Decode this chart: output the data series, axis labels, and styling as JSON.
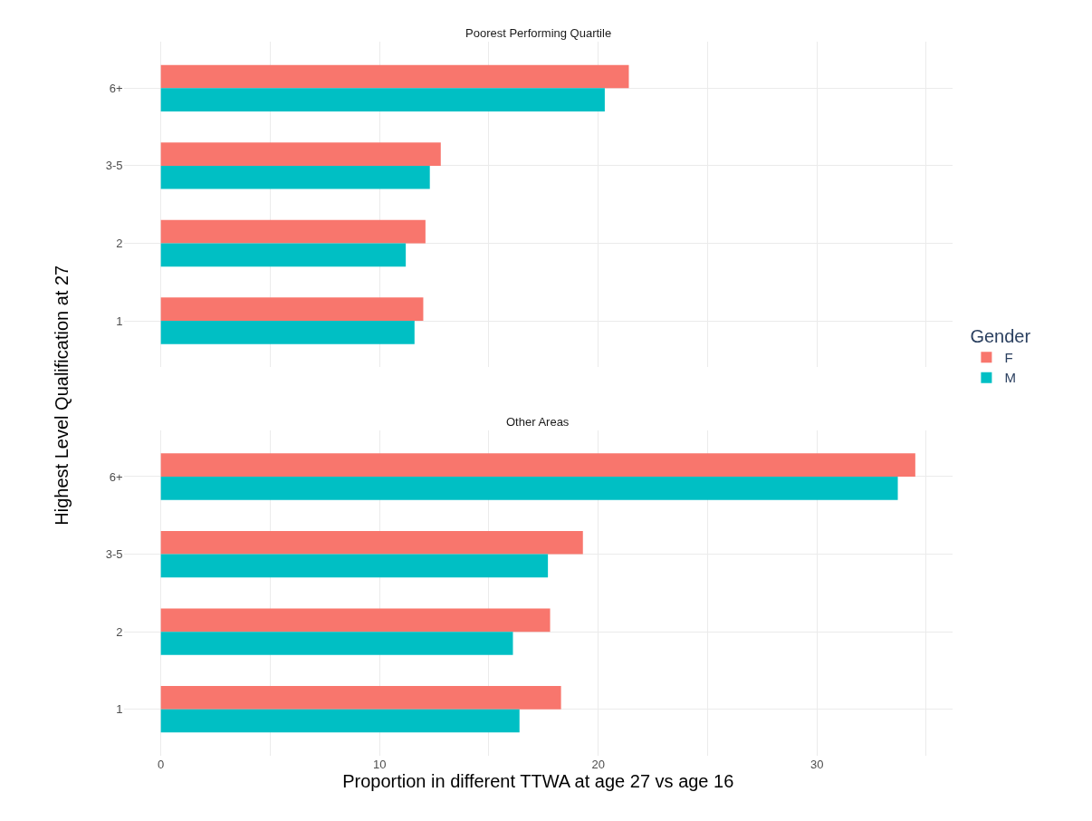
{
  "chart_data": [
    {
      "type": "bar",
      "orientation": "horizontal",
      "title": "Poorest Performing Quartile",
      "categories": [
        "6+",
        "3-5",
        "2",
        "1"
      ],
      "series": [
        {
          "name": "F",
          "color": "#f8766d",
          "values": [
            21.4,
            12.8,
            12.1,
            12.0
          ]
        },
        {
          "name": "M",
          "color": "#00bfc4",
          "values": [
            20.3,
            12.3,
            11.2,
            11.6
          ]
        }
      ],
      "xlim": [
        -1.7,
        36.2
      ],
      "xticks": [
        0,
        {
          "value": 5,
          "label": null
        },
        10,
        {
          "value": 15,
          "label": null
        },
        20,
        {
          "value": 25,
          "label": null
        },
        30,
        {
          "value": 35,
          "label": null
        }
      ],
      "grid": true,
      "tick_labels": "y",
      "legend": "right",
      "legend_title": "Gender"
    },
    {
      "type": "bar",
      "orientation": "horizontal",
      "title": "Other Areas",
      "categories": [
        "6+",
        "3-5",
        "2",
        "1"
      ],
      "series": [
        {
          "name": "F",
          "color": "#f8766d",
          "values": [
            34.5,
            19.3,
            17.8,
            18.3
          ]
        },
        {
          "name": "M",
          "color": "#00bfc4",
          "values": [
            33.7,
            17.7,
            16.1,
            16.4
          ]
        }
      ],
      "xlim": [
        -1.7,
        36.2
      ],
      "xticks": [
        0,
        {
          "value": 5,
          "label": null
        },
        10,
        {
          "value": 15,
          "label": null
        },
        20,
        {
          "value": 25,
          "label": null
        },
        30,
        {
          "value": 35,
          "label": null
        }
      ],
      "grid": true,
      "xlabel": "Proportion in different TTWA at age 27 vs age 16",
      "ylabel": "Highest Level Qualification at 27"
    }
  ]
}
